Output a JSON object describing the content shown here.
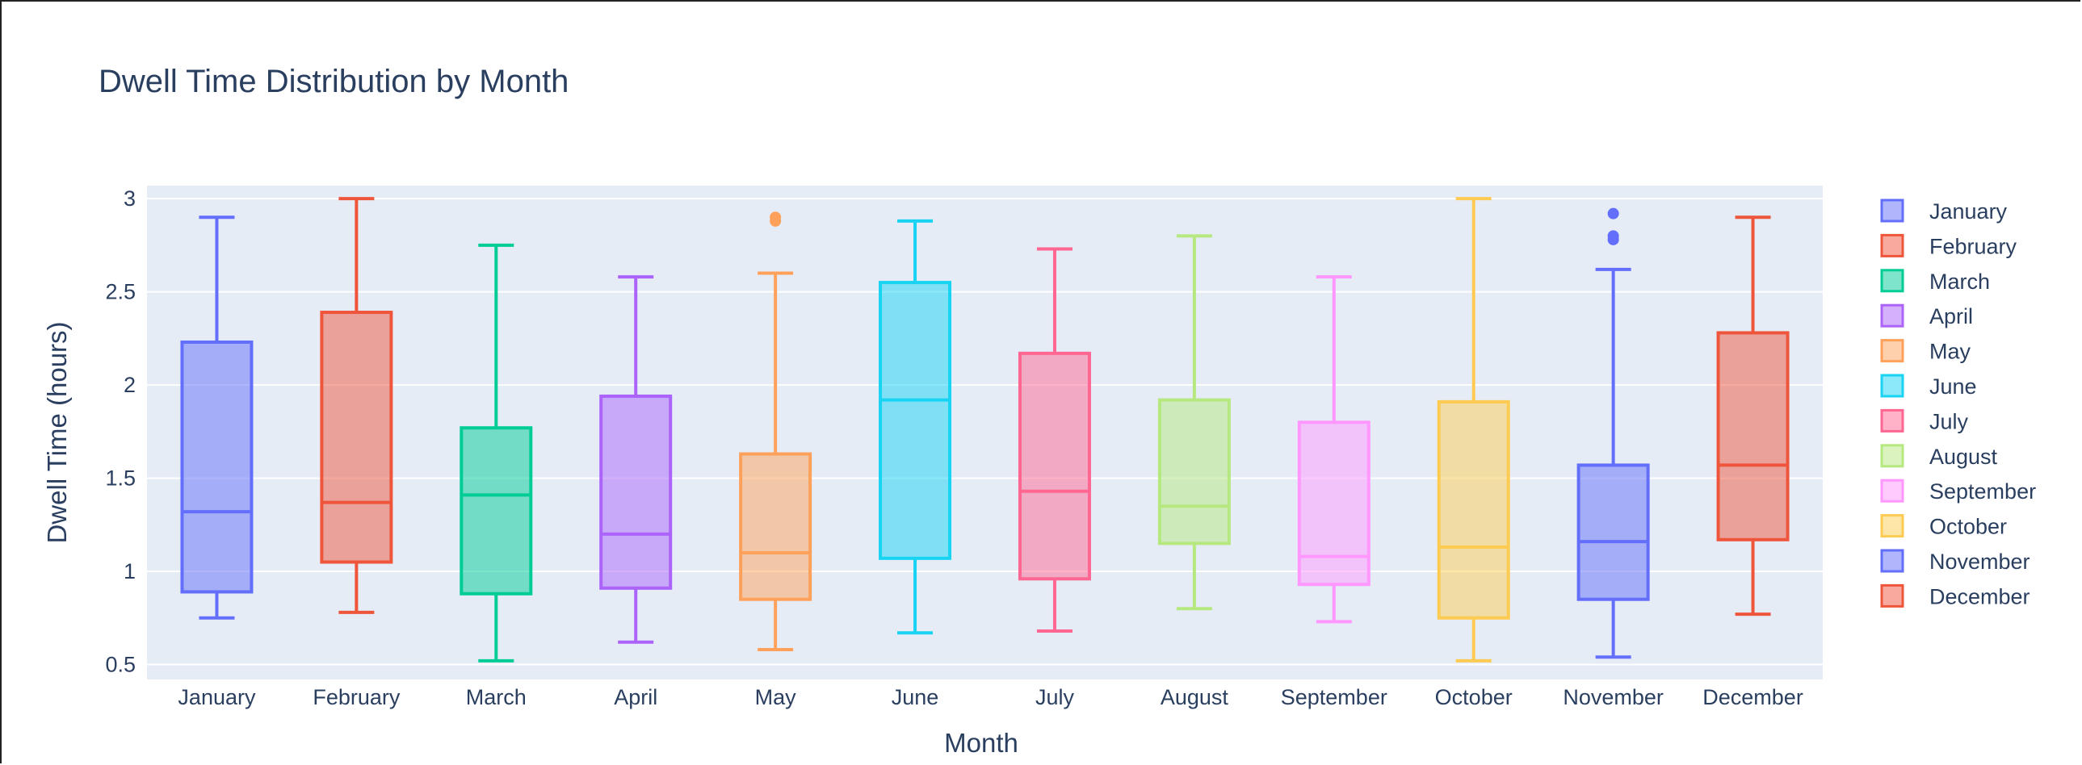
{
  "chart_data": {
    "type": "box",
    "title": "Dwell Time Distribution by Month",
    "xlabel": "Month",
    "ylabel": "Dwell Time (hours)",
    "ylim": [
      0.42,
      3.07
    ],
    "yticks": [
      0.5,
      1,
      1.5,
      2,
      2.5,
      3
    ],
    "ytick_labels": [
      "0.5",
      "1",
      "1.5",
      "2",
      "2.5",
      "3"
    ],
    "grid": true,
    "legend_position": "right",
    "categories": [
      "January",
      "February",
      "March",
      "April",
      "May",
      "June",
      "July",
      "August",
      "September",
      "October",
      "November",
      "December"
    ],
    "series": [
      {
        "name": "January",
        "color": "#636efa",
        "min": 0.75,
        "q1": 0.89,
        "median": 1.32,
        "q3": 2.23,
        "max": 2.9,
        "outliers": []
      },
      {
        "name": "February",
        "color": "#ef553b",
        "min": 0.78,
        "q1": 1.05,
        "median": 1.37,
        "q3": 2.39,
        "max": 3.0,
        "outliers": []
      },
      {
        "name": "March",
        "color": "#00cc96",
        "min": 0.52,
        "q1": 0.88,
        "median": 1.41,
        "q3": 1.77,
        "max": 2.75,
        "outliers": []
      },
      {
        "name": "April",
        "color": "#ab63fa",
        "min": 0.62,
        "q1": 0.91,
        "median": 1.2,
        "q3": 1.94,
        "max": 2.58,
        "outliers": []
      },
      {
        "name": "May",
        "color": "#ffa15a",
        "min": 0.58,
        "q1": 0.85,
        "median": 1.1,
        "q3": 1.63,
        "max": 2.6,
        "outliers": [
          2.88,
          2.9
        ]
      },
      {
        "name": "June",
        "color": "#19d3f3",
        "min": 0.67,
        "q1": 1.07,
        "median": 1.92,
        "q3": 2.55,
        "max": 2.88,
        "outliers": []
      },
      {
        "name": "July",
        "color": "#ff6692",
        "min": 0.68,
        "q1": 0.96,
        "median": 1.43,
        "q3": 2.17,
        "max": 2.73,
        "outliers": []
      },
      {
        "name": "August",
        "color": "#b6e880",
        "min": 0.8,
        "q1": 1.15,
        "median": 1.35,
        "q3": 1.92,
        "max": 2.8,
        "outliers": []
      },
      {
        "name": "September",
        "color": "#ff97ff",
        "min": 0.73,
        "q1": 0.93,
        "median": 1.08,
        "q3": 1.8,
        "max": 2.58,
        "outliers": []
      },
      {
        "name": "October",
        "color": "#fecb52",
        "min": 0.52,
        "q1": 0.75,
        "median": 1.13,
        "q3": 1.91,
        "max": 3.0,
        "outliers": []
      },
      {
        "name": "November",
        "color": "#636efa",
        "min": 0.54,
        "q1": 0.85,
        "median": 1.16,
        "q3": 1.57,
        "max": 2.62,
        "outliers": [
          2.78,
          2.8,
          2.92
        ]
      },
      {
        "name": "December",
        "color": "#ef553b",
        "min": 0.77,
        "q1": 1.17,
        "median": 1.57,
        "q3": 2.28,
        "max": 2.9,
        "outliers": []
      }
    ]
  }
}
